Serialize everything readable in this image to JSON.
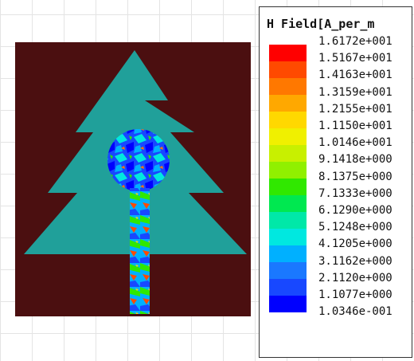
{
  "legend": {
    "title": "H Field[A_per_m",
    "values": [
      "1.6172e+001",
      "1.5167e+001",
      "1.4163e+001",
      "1.3159e+001",
      "1.2155e+001",
      "1.1150e+001",
      "1.0146e+001",
      "9.1418e+000",
      "8.1375e+000",
      "7.1333e+000",
      "6.1290e+000",
      "5.1248e+000",
      "4.1205e+000",
      "3.1162e+000",
      "2.1120e+000",
      "1.1077e+000",
      "1.0346e-001"
    ],
    "colors": [
      "#ff0000",
      "#ff4a00",
      "#ff7800",
      "#ffa800",
      "#ffd800",
      "#f0f000",
      "#c8f000",
      "#90f000",
      "#30e800",
      "#00e850",
      "#00e8a8",
      "#00e8e0",
      "#00b0ff",
      "#1a78ff",
      "#1848ff",
      "#0000ff"
    ]
  },
  "colors": {
    "substrate": "#4b0f10",
    "patch": "#20a09a",
    "grid": "#e4e4e4"
  }
}
